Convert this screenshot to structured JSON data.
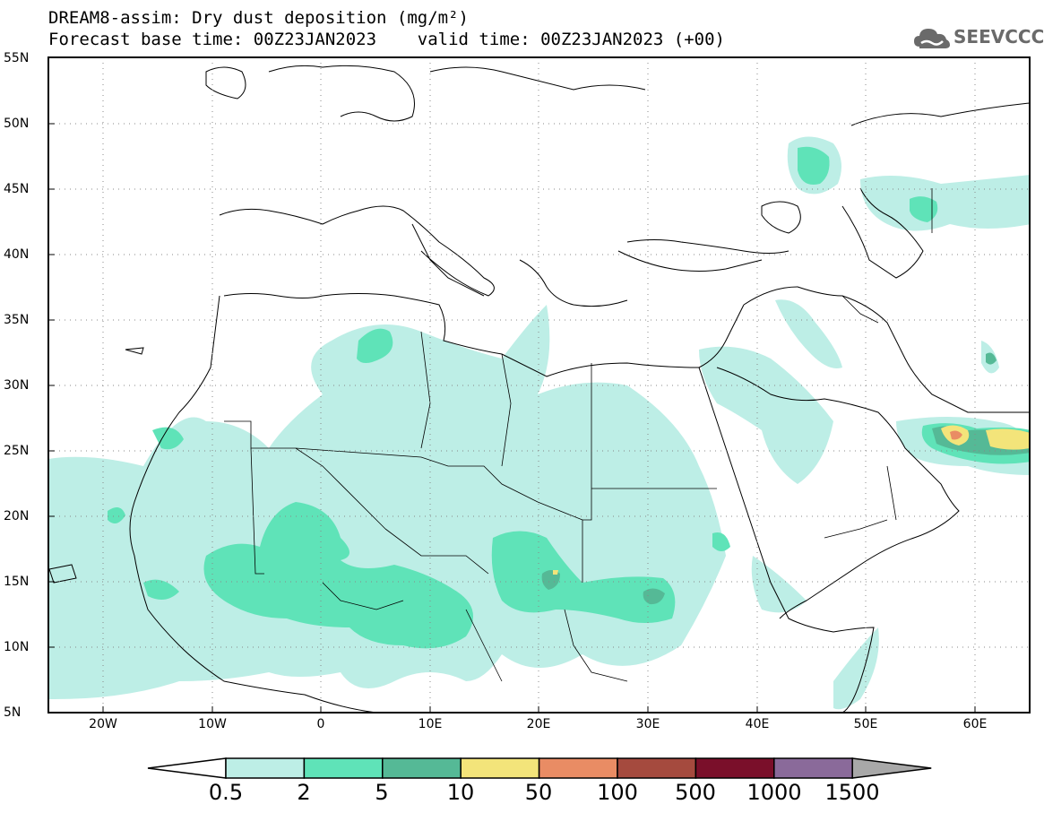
{
  "title_line1": "DREAM8-assim: Dry dust deposition (mg/m²)",
  "title_line2": "Forecast base time: 00Z23JAN2023    valid time: 00Z23JAN2023 (+00)",
  "logo": {
    "text": "SEEVCCC",
    "icon": "cloud-icon"
  },
  "map": {
    "lon_range": [
      -25,
      65
    ],
    "lat_range": [
      5,
      55
    ],
    "grid": true,
    "lat_ticks": [
      "55N",
      "50N",
      "45N",
      "40N",
      "35N",
      "30N",
      "25N",
      "20N",
      "15N",
      "10N",
      "5N"
    ],
    "lon_ticks": [
      "20W",
      "10W",
      "0",
      "10E",
      "20E",
      "30E",
      "40E",
      "50E",
      "60E"
    ]
  },
  "colorbar": {
    "labels": [
      "0.5",
      "2",
      "5",
      "10",
      "50",
      "100",
      "500",
      "1000",
      "1500"
    ],
    "colors": [
      "#ffffff",
      "#bdeee6",
      "#5fe3b8",
      "#55b996",
      "#f3e47a",
      "#e98c64",
      "#a54a3e",
      "#7a0f2a",
      "#8a6a9a",
      "#a8a8a8"
    ]
  }
}
